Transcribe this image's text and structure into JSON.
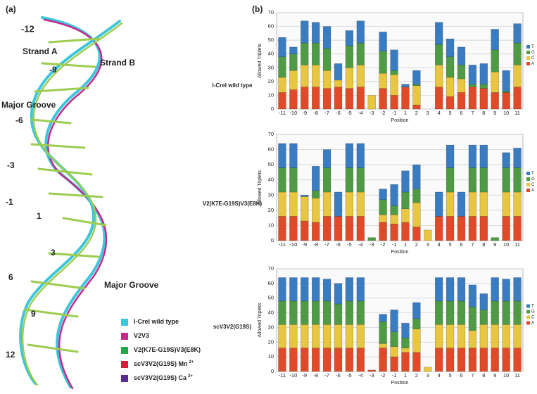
{
  "figure": {
    "panel_a": "(a)",
    "panel_b": "(b)",
    "structure_labels": [
      "-12",
      "Strand A",
      "Strand B",
      "-9",
      "Major Groove",
      "-6",
      "-3",
      "-1",
      "1",
      "3",
      "6",
      "Major Groove",
      "9",
      "12"
    ],
    "legend": [
      {
        "label": "I-CreI wild type",
        "color": "#3cc6dc"
      },
      {
        "label": "V2V3",
        "color": "#c42a8a"
      },
      {
        "label": "V2(K7E-G19S)V3(E8K)",
        "color": "#22a84a"
      },
      {
        "label": "scV3V2(G19S) Mn",
        "sup": "2+",
        "color": "#d0203a"
      },
      {
        "label": "scV3V2(G19S) Ca",
        "sup": "2+",
        "color": "#5a2a8e"
      }
    ]
  },
  "chart_data": [
    {
      "type": "bar",
      "stacked": true,
      "title": "I-CreI wild type",
      "ylabel": "Allowed Triplets",
      "xlabel": "Position",
      "categories": [
        "-11",
        "-10",
        "-9",
        "-8",
        "-7",
        "-6",
        "-5",
        "-4",
        "-3",
        "-2",
        "-1",
        "1",
        "2",
        "3",
        "4",
        "5",
        "6",
        "7",
        "8",
        "9",
        "10",
        "11"
      ],
      "series": [
        {
          "name": "A",
          "color": "#e04a28",
          "values": [
            12,
            14,
            16,
            16,
            15,
            16,
            15,
            16,
            0,
            15,
            10,
            16,
            3,
            0,
            16,
            9,
            12,
            16,
            15,
            12,
            12,
            16
          ]
        },
        {
          "name": "C",
          "color": "#e8c640",
          "values": [
            11,
            14,
            16,
            16,
            13,
            5,
            15,
            16,
            10,
            11,
            15,
            0,
            14,
            0,
            16,
            14,
            10,
            0,
            0,
            15,
            0,
            16
          ]
        },
        {
          "name": "G",
          "color": "#4f9a45",
          "values": [
            15,
            12,
            16,
            16,
            16,
            0,
            16,
            16,
            0,
            16,
            3,
            0,
            1,
            0,
            15,
            15,
            10,
            2,
            3,
            16,
            1,
            16
          ]
        },
        {
          "name": "T",
          "color": "#3a7cc2",
          "values": [
            14,
            5,
            16,
            15,
            16,
            12,
            11,
            16,
            0,
            14,
            15,
            2,
            10,
            0,
            16,
            13,
            13,
            14,
            15,
            15,
            15,
            14
          ]
        }
      ],
      "ylim": [
        0,
        70
      ],
      "yticks": [
        0,
        10,
        20,
        30,
        40,
        50,
        60,
        70
      ],
      "grid": true,
      "legend": "right"
    },
    {
      "type": "bar",
      "stacked": true,
      "title": "V2(K7E-G19S)V3(E8K)",
      "ylabel": "Allowed Triplets",
      "xlabel": "Position",
      "categories": [
        "-11",
        "-10",
        "-9",
        "-8",
        "-7",
        "-6",
        "-5",
        "-4",
        "-3",
        "-2",
        "-1",
        "1",
        "2",
        "3",
        "4",
        "5",
        "6",
        "7",
        "8",
        "9",
        "10",
        "11"
      ],
      "series": [
        {
          "name": "A",
          "color": "#e04a28",
          "values": [
            16,
            16,
            13,
            12,
            16,
            16,
            16,
            16,
            0,
            12,
            11,
            12,
            9,
            0,
            16,
            16,
            16,
            16,
            16,
            0,
            16,
            16
          ]
        },
        {
          "name": "C",
          "color": "#e8c640",
          "values": [
            16,
            16,
            16,
            16,
            16,
            0,
            16,
            16,
            0,
            5,
            6,
            9,
            16,
            7,
            0,
            16,
            0,
            16,
            16,
            0,
            16,
            16
          ]
        },
        {
          "name": "G",
          "color": "#4f9a45",
          "values": [
            16,
            16,
            0,
            5,
            16,
            0,
            16,
            16,
            2,
            10,
            6,
            11,
            9,
            0,
            0,
            16,
            0,
            16,
            16,
            2,
            16,
            16
          ]
        },
        {
          "name": "T",
          "color": "#3a7cc2",
          "values": [
            16,
            16,
            1,
            16,
            12,
            16,
            16,
            16,
            0,
            7,
            14,
            14,
            16,
            0,
            16,
            15,
            16,
            15,
            15,
            0,
            10,
            13
          ]
        }
      ],
      "ylim": [
        0,
        70
      ],
      "yticks": [
        0,
        10,
        20,
        30,
        40,
        50,
        60,
        70
      ],
      "grid": true,
      "legend": "right"
    },
    {
      "type": "bar",
      "stacked": true,
      "title": "scV3V2(G19S)",
      "ylabel": "Allowed Triplets",
      "xlabel": "Position",
      "categories": [
        "-11",
        "-10",
        "-9",
        "-8",
        "-7",
        "-6",
        "-5",
        "-4",
        "-3",
        "-2",
        "-1",
        "1",
        "2",
        "3",
        "4",
        "5",
        "6",
        "7",
        "8",
        "9",
        "10",
        "11"
      ],
      "series": [
        {
          "name": "A",
          "color": "#e04a28",
          "values": [
            16,
            16,
            16,
            16,
            16,
            16,
            16,
            16,
            1,
            16,
            10,
            13,
            13,
            0,
            16,
            16,
            16,
            16,
            16,
            16,
            16,
            16
          ]
        },
        {
          "name": "C",
          "color": "#e8c640",
          "values": [
            16,
            16,
            16,
            16,
            16,
            16,
            16,
            16,
            0,
            3,
            7,
            3,
            16,
            3,
            16,
            16,
            16,
            12,
            16,
            16,
            16,
            16
          ]
        },
        {
          "name": "G",
          "color": "#4f9a45",
          "values": [
            16,
            16,
            16,
            16,
            16,
            14,
            16,
            16,
            0,
            15,
            10,
            7,
            7,
            0,
            16,
            16,
            16,
            16,
            10,
            16,
            16,
            16
          ]
        },
        {
          "name": "T",
          "color": "#3a7cc2",
          "values": [
            16,
            16,
            16,
            16,
            15,
            14,
            16,
            16,
            0,
            5,
            15,
            10,
            11,
            0,
            16,
            16,
            16,
            15,
            11,
            16,
            15,
            16
          ]
        }
      ],
      "ylim": [
        0,
        70
      ],
      "yticks": [
        0,
        10,
        20,
        30,
        40,
        50,
        60,
        70
      ],
      "grid": true,
      "legend": "right"
    }
  ]
}
